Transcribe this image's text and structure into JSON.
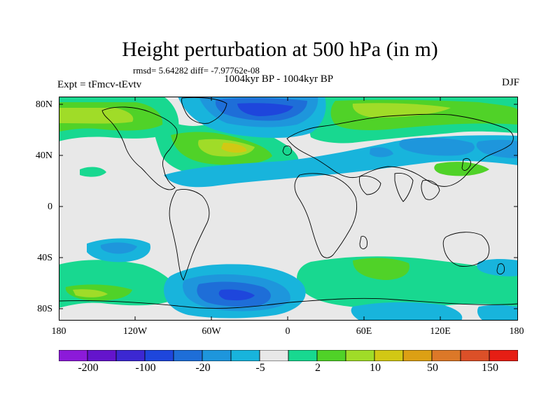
{
  "header": {
    "title": "Height perturbation at 500 hPa (in m)",
    "stats": "rmsd= 5.64282 diff= -7.97762e-08",
    "period": "1004kyr BP - 1004kyr BP",
    "expt": "Expt = tFmcv-tEvtv",
    "season": "DJF"
  },
  "axes": {
    "lat_ticks": [
      "80N",
      "40N",
      "0",
      "40S",
      "80S"
    ],
    "lon_ticks": [
      "180",
      "120W",
      "60W",
      "0",
      "60E",
      "120E",
      "180"
    ]
  },
  "colorbar": {
    "colors": [
      "#8c1ad9",
      "#6414cc",
      "#3c28d2",
      "#1e46dc",
      "#1e6ed8",
      "#1e96dc",
      "#18b4dc",
      "#e8e8e8",
      "#18d890",
      "#50d228",
      "#a0dc28",
      "#d2c814",
      "#dca014",
      "#dc7828",
      "#dc5028",
      "#e61e14"
    ],
    "labels": [
      "-200",
      "-100",
      "-20",
      "-5",
      "2",
      "10",
      "50",
      "150"
    ]
  },
  "map": {
    "background": "#e8e8e8",
    "anomalies": [
      {
        "name": "arctic-negative-core",
        "level": -20
      },
      {
        "name": "north-atlantic-positive",
        "level": 10
      },
      {
        "name": "north-pacific-positive",
        "level": 10
      },
      {
        "name": "eurasia-positive",
        "level": 10
      },
      {
        "name": "north-pacific-negative-belt",
        "level": -5
      },
      {
        "name": "antarctic-negative",
        "level": -20
      },
      {
        "name": "southern-ocean-positive",
        "level": 10
      }
    ]
  }
}
